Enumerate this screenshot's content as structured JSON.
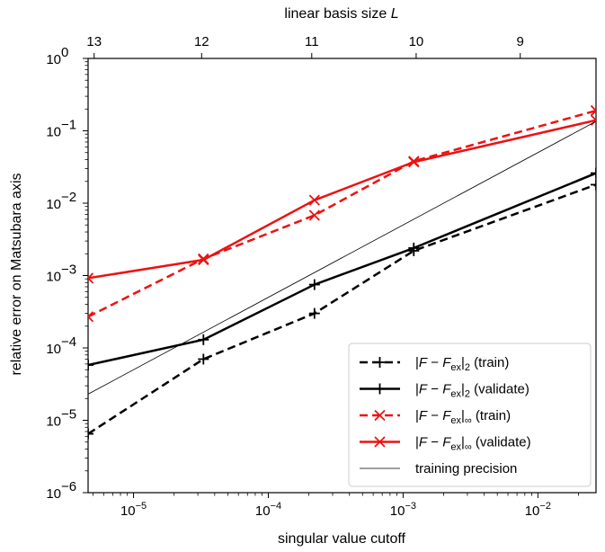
{
  "chart_data": {
    "type": "line",
    "xlabel": "singular value cutoff",
    "ylabel": "relative error on Matsubara axis",
    "top_xlabel": "linear basis size L",
    "x_scale": "log",
    "y_scale": "log",
    "xlim": [
      4.6e-06,
      0.027
    ],
    "ylim": [
      1e-06,
      1
    ],
    "x_ticks": [
      {
        "value": 1e-05,
        "base": "10",
        "exp": "−5"
      },
      {
        "value": 0.0001,
        "base": "10",
        "exp": "−4"
      },
      {
        "value": 0.001,
        "base": "10",
        "exp": "−3"
      },
      {
        "value": 0.01,
        "base": "10",
        "exp": "−2"
      }
    ],
    "y_ticks": [
      {
        "value": 1e-06,
        "base": "10",
        "exp": "−6"
      },
      {
        "value": 1e-05,
        "base": "10",
        "exp": "−5"
      },
      {
        "value": 0.0001,
        "base": "10",
        "exp": "−4"
      },
      {
        "value": 0.001,
        "base": "10",
        "exp": "−3"
      },
      {
        "value": 0.01,
        "base": "10",
        "exp": "−2"
      },
      {
        "value": 0.1,
        "base": "10",
        "exp": "−1"
      },
      {
        "value": 1,
        "base": "10",
        "exp": "0"
      }
    ],
    "top_ticks": [
      {
        "value": 5.1e-06,
        "label": "13"
      },
      {
        "value": 3.2e-05,
        "label": "12"
      },
      {
        "value": 0.00021,
        "label": "11"
      },
      {
        "value": 0.00125,
        "label": "10"
      },
      {
        "value": 0.0074,
        "label": "9"
      }
    ],
    "grid": false,
    "legend_position": "bottom-right",
    "series": [
      {
        "name_parts": [
          "|",
          "F",
          " − ",
          "F",
          "ex",
          "|",
          "2",
          " (train)"
        ],
        "color": "#000000",
        "dash": "dashed",
        "marker": "plus",
        "x": [
          4.6e-06,
          3.3e-05,
          0.00022,
          0.0012,
          0.027
        ],
        "y": [
          6.5e-06,
          7e-05,
          0.0003,
          0.0022,
          0.018
        ]
      },
      {
        "name_parts": [
          "|",
          "F",
          " − ",
          "F",
          "ex",
          "|",
          "2",
          " (validate)"
        ],
        "color": "#000000",
        "dash": "solid",
        "marker": "plus",
        "x": [
          4.6e-06,
          3.3e-05,
          0.00022,
          0.0012,
          0.027
        ],
        "y": [
          5.8e-05,
          0.00013,
          0.00075,
          0.0024,
          0.026
        ]
      },
      {
        "name_parts": [
          "|",
          "F",
          " − ",
          "F",
          "ex",
          "|",
          "∞",
          " (train)"
        ],
        "color": "#ee1111",
        "dash": "dashed",
        "marker": "x",
        "x": [
          4.6e-06,
          3.3e-05,
          0.00022,
          0.0012,
          0.027
        ],
        "y": [
          0.00027,
          0.0017,
          0.0068,
          0.038,
          0.19
        ]
      },
      {
        "name_parts": [
          "|",
          "F",
          " − ",
          "F",
          "ex",
          "|",
          "∞",
          " (validate)"
        ],
        "color": "#ee1111",
        "dash": "solid",
        "marker": "x",
        "x": [
          4.6e-06,
          3.3e-05,
          0.00022,
          0.0012,
          0.027
        ],
        "y": [
          0.00092,
          0.00165,
          0.011,
          0.037,
          0.14
        ]
      },
      {
        "name_parts": [
          "training precision"
        ],
        "color": "#000000",
        "dash": "thin",
        "marker": "none",
        "x": [
          4.6e-06,
          0.027
        ],
        "y": [
          2.3e-05,
          0.135
        ]
      }
    ]
  }
}
